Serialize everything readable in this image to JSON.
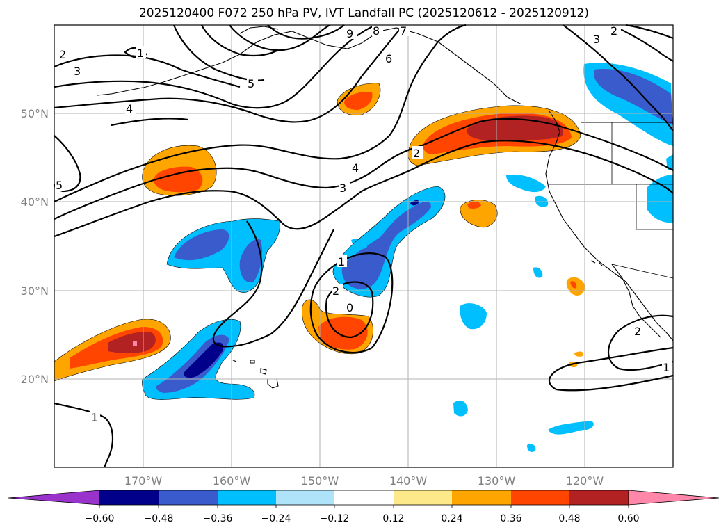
{
  "title": "2025120400 F072 250 hPa PV, IVT Landfall PC (2025120612 - 2025120912)",
  "map": {
    "lat_labels": [
      "50°N",
      "40°N",
      "30°N",
      "20°N"
    ],
    "lon_labels": [
      "170°W",
      "160°W",
      "150°W",
      "140°W",
      "130°W",
      "120°W"
    ],
    "gridlines": true,
    "projection_extent": {
      "lon_min": -180,
      "lon_max": -110,
      "lat_min": 10,
      "lat_max": 60
    }
  },
  "contour_labels": [
    "2",
    "3",
    "4",
    "5",
    "6",
    "7",
    "8",
    "9",
    "1",
    "2",
    "3",
    "4",
    "5",
    "1",
    "2",
    "0",
    "1",
    "2",
    "1",
    "2",
    "3"
  ],
  "colorbar": {
    "ticks": [
      "−0.60",
      "−0.48",
      "−0.36",
      "−0.24",
      "−0.12",
      "0.12",
      "0.24",
      "0.36",
      "0.48",
      "0.60"
    ],
    "colors": [
      "#9933cc",
      "#00008b",
      "#3a5bcc",
      "#00bfff",
      "#aee3fa",
      "#ffffff",
      "#fde88a",
      "#ffa500",
      "#ff4500",
      "#b22222",
      "#ff88aa"
    ]
  },
  "colors": {
    "neg_strong": "#00008b",
    "neg_mid": "#3a5bcc",
    "neg_light": "#00bfff",
    "pos_light": "#ffa500",
    "pos_mid": "#ff4500",
    "pos_strong": "#b22222",
    "pos_max": "#ff88aa",
    "grid": "#b0b0b0",
    "label_gray": "#808080"
  }
}
